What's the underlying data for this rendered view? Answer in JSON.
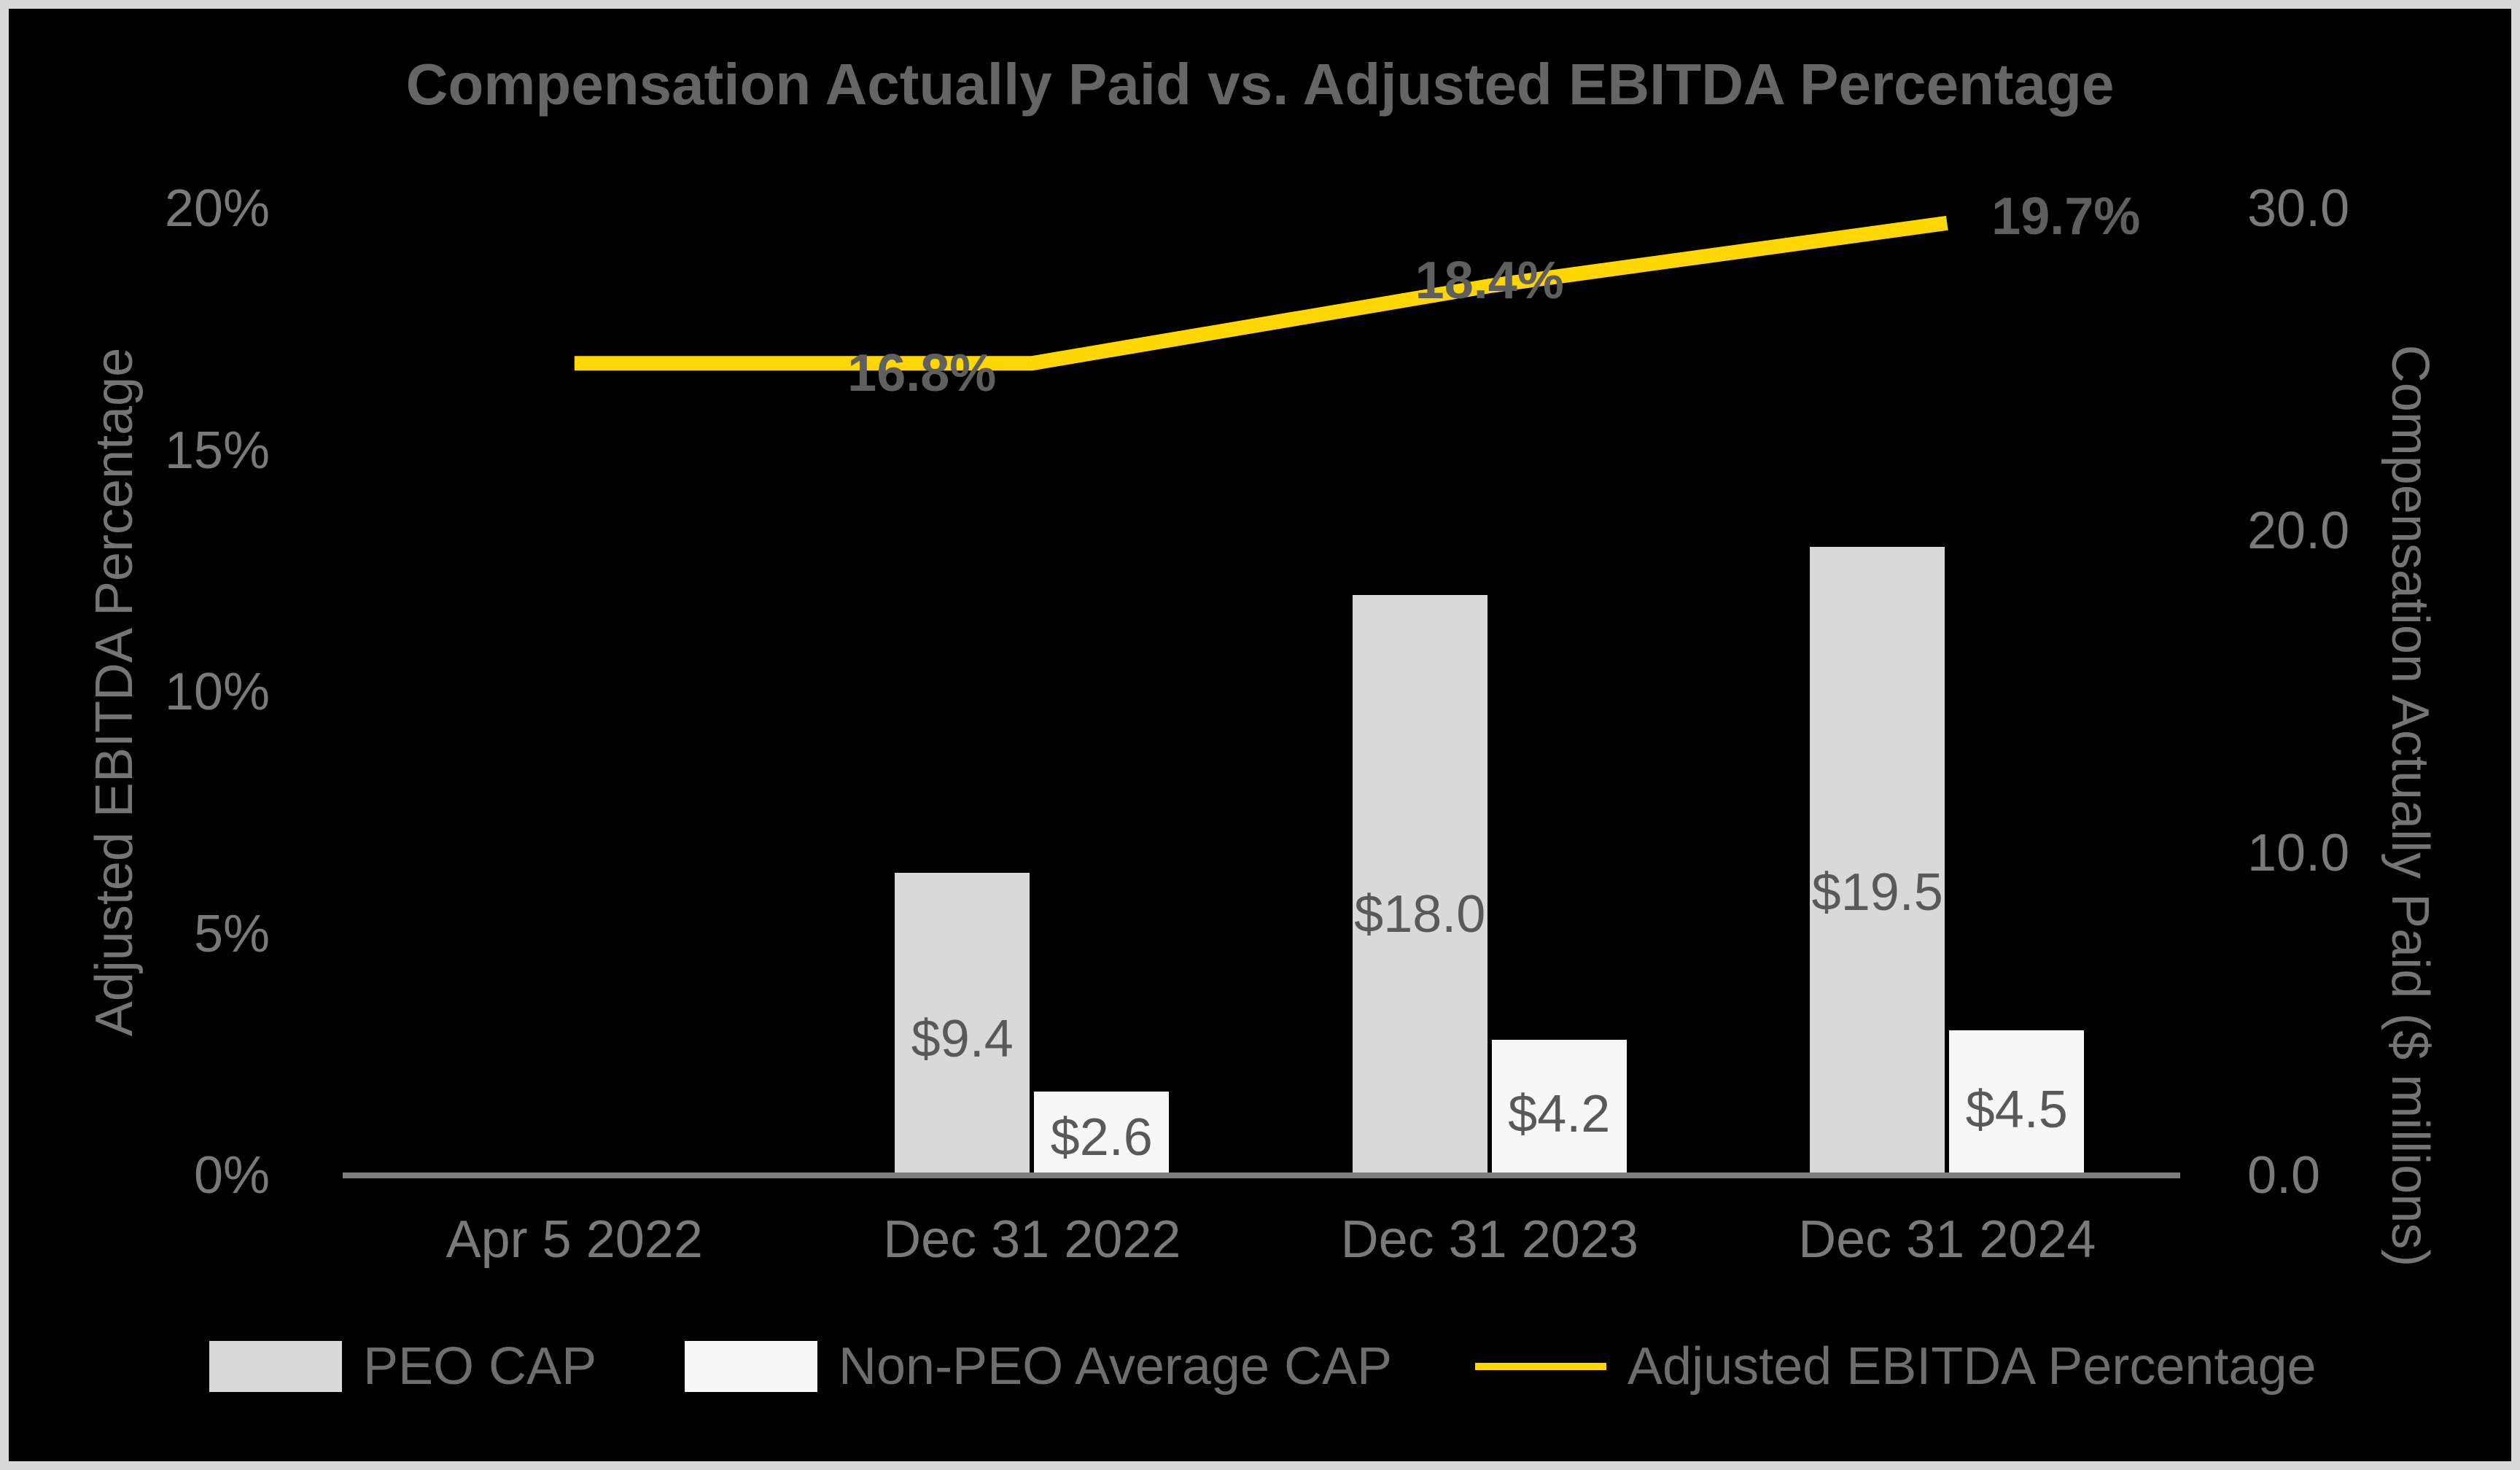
{
  "title": "Compensation Actually Paid vs. Adjusted EBITDA Percentage",
  "colors": {
    "background": "#000000",
    "frame_border": "#D9D9D9",
    "axis_line": "#7F7F7F",
    "axis_text": "#7A7A7A",
    "title_text": "#656565",
    "bar_label_text": "#595959",
    "line_label_text": "#5F5F5F",
    "peo_bar": "#D9D9D9",
    "non_peo_bar": "#F7F7F7",
    "ebitda_line": "#FFD700"
  },
  "chart_data": {
    "type": "combo-bar-line",
    "categories": [
      "Apr 5 2022",
      "Dec 31 2022",
      "Dec 31 2023",
      "Dec 31 2024"
    ],
    "bar_series": [
      {
        "name": "PEO CAP",
        "color": "#D9D9D9",
        "axis": "right",
        "values": [
          null,
          9.4,
          18.0,
          19.5
        ],
        "labels": [
          "",
          "$9.4",
          "$18.0",
          "$19.5"
        ]
      },
      {
        "name": "Non-PEO Average CAP",
        "color": "#F7F7F7",
        "axis": "right",
        "values": [
          null,
          2.6,
          4.2,
          4.5
        ],
        "labels": [
          "",
          "$2.6",
          "$4.2",
          "$4.5"
        ]
      }
    ],
    "line_series": {
      "name": "Adjusted EBITDA Percentage",
      "color": "#FFD700",
      "axis": "left",
      "values": [
        16.8,
        16.8,
        18.4,
        19.7
      ],
      "labels": [
        "",
        "16.8%",
        "18.4%",
        "19.7%"
      ]
    },
    "left_axis": {
      "title": "Adjusted EBITDA Percentage",
      "min": 0,
      "max": 20,
      "ticks": [
        "0%",
        "5%",
        "10%",
        "15%",
        "20%"
      ]
    },
    "right_axis": {
      "title": "Compensation Actually Paid ($ millions)",
      "min": 0,
      "max": 30,
      "ticks": [
        "0.0",
        "10.0",
        "20.0",
        "30.0"
      ]
    },
    "legend": [
      {
        "label": "PEO CAP",
        "swatch": "bar",
        "color": "#D9D9D9"
      },
      {
        "label": "Non-PEO Average CAP",
        "swatch": "bar",
        "color": "#F7F7F7"
      },
      {
        "label": "Adjusted EBITDA Percentage",
        "swatch": "line",
        "color": "#FFD700"
      }
    ],
    "gridlines": false,
    "legend_position": "bottom"
  }
}
